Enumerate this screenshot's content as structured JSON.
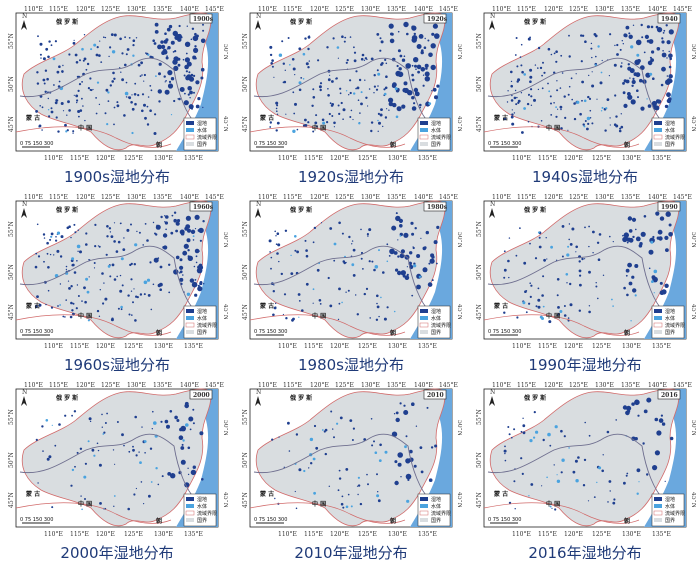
{
  "panels": [
    {
      "year_box": "1900s",
      "caption": "1900s湿地分布"
    },
    {
      "year_box": "1920s",
      "caption": "1920s湿地分布"
    },
    {
      "year_box": "1940",
      "caption": "1940s湿地分布"
    },
    {
      "year_box": "1960s",
      "caption": "1960s湿地分布"
    },
    {
      "year_box": "1980s",
      "caption": "1980s湿地分布"
    },
    {
      "year_box": "1990",
      "caption": "1990年湿地分布"
    },
    {
      "year_box": "2000",
      "caption": "2000年湿地分布"
    },
    {
      "year_box": "2010",
      "caption": "2010年湿地分布"
    },
    {
      "year_box": "2016",
      "caption": "2016年湿地分布"
    }
  ],
  "map_labels": {
    "russia": "俄 罗 斯",
    "mongolia": "蒙 古",
    "china": "中 国",
    "korea": "朝",
    "lon_top": [
      "110°E",
      "115°E",
      "120°E",
      "125°E",
      "130°E",
      "135°E",
      "140°E",
      "145°E"
    ],
    "lon_bottom": [
      "110°E",
      "115°E",
      "120°E",
      "125°E",
      "130°E",
      "135°E"
    ],
    "lat_left": [
      "55°N",
      "50°N",
      "45°N"
    ],
    "lat_right": [
      "50°N",
      "45°N"
    ],
    "north": "N",
    "scale": "0  75 150    300"
  },
  "legend": {
    "wetland": "湿地",
    "water": "水体",
    "basin": "流域界限",
    "border": "国界"
  },
  "colors": {
    "land": "#d9dde0",
    "wetland": "#1f3f8f",
    "water": "#4aa3df",
    "sea": "#6aa8de",
    "border": "#d16a6a",
    "river": "#6f6f8f",
    "caption": "#1f3a78"
  }
}
